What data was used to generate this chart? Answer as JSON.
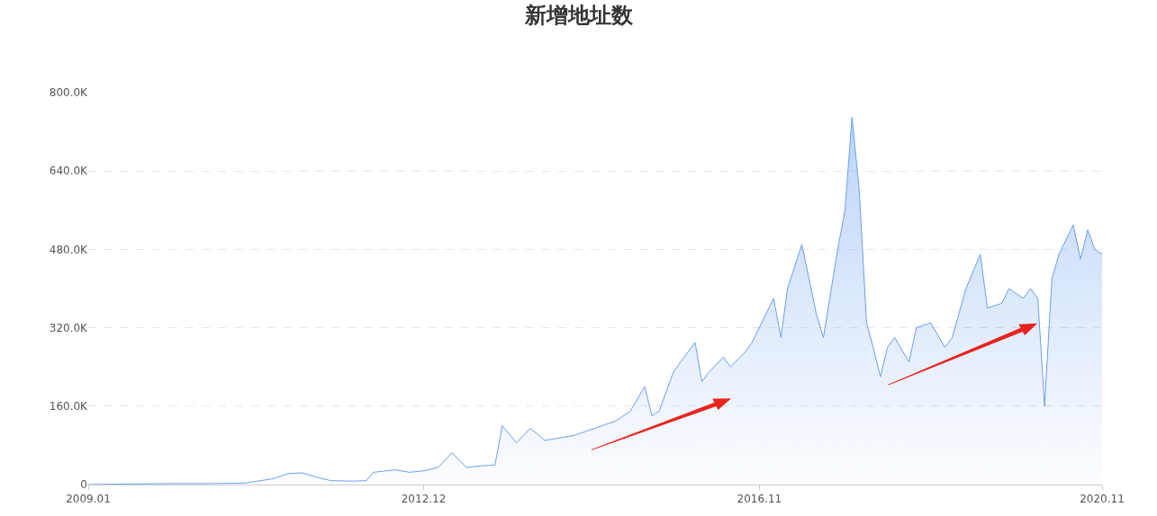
{
  "chart_data": {
    "type": "area",
    "title": "新增地址数",
    "x": [
      "2009-01",
      "2009-06",
      "2010-01",
      "2010-06",
      "2010-11",
      "2011-03",
      "2011-05",
      "2011-07",
      "2011-09",
      "2011-11",
      "2012-02",
      "2012-04",
      "2012-05",
      "2012-08",
      "2012-10",
      "2012-12",
      "2013-02",
      "2013-04",
      "2013-06",
      "2013-08",
      "2013-10",
      "2013-11",
      "2014-01",
      "2014-03",
      "2014-05",
      "2014-07",
      "2014-09",
      "2014-11",
      "2015-01",
      "2015-03",
      "2015-05",
      "2015-07",
      "2015-08",
      "2015-09",
      "2015-11",
      "2015-12",
      "2016-02",
      "2016-03",
      "2016-04",
      "2016-06",
      "2016-07",
      "2016-09",
      "2016-10",
      "2016-12",
      "2017-01",
      "2017-02",
      "2017-03",
      "2017-05",
      "2017-06",
      "2017-07",
      "2017-08",
      "2017-10",
      "2017-11",
      "2017-12",
      "2018-01",
      "2018-02",
      "2018-03",
      "2018-04",
      "2018-05",
      "2018-06",
      "2018-08",
      "2018-09",
      "2018-11",
      "2019-01",
      "2019-02",
      "2019-04",
      "2019-06",
      "2019-07",
      "2019-09",
      "2019-10",
      "2019-12",
      "2020-01",
      "2020-02",
      "2020-03",
      "2020-04",
      "2020-05",
      "2020-07",
      "2020-08",
      "2020-09",
      "2020-10",
      "2020-11"
    ],
    "series": [
      {
        "color": "#6b9ff0",
        "values": [
          0,
          1000,
          2000,
          2000,
          3000,
          12000,
          22000,
          24000,
          15000,
          8000,
          7000,
          8000,
          25000,
          30000,
          25000,
          28000,
          35000,
          65000,
          35000,
          38000,
          40000,
          120000,
          85000,
          115000,
          90000,
          95000,
          100000,
          110000,
          120000,
          130000,
          150000,
          200000,
          140000,
          150000,
          230000,
          250000,
          290000,
          210000,
          230000,
          260000,
          240000,
          270000,
          290000,
          350000,
          380000,
          300000,
          400000,
          490000,
          420000,
          350000,
          300000,
          480000,
          560000,
          750000,
          600000,
          330000,
          280000,
          220000,
          280000,
          300000,
          250000,
          320000,
          330000,
          280000,
          300000,
          400000,
          470000,
          360000,
          370000,
          400000,
          380000,
          400000,
          380000,
          160000,
          420000,
          470000,
          530000,
          460000,
          520000,
          480000,
          470000
        ]
      }
    ],
    "xlim": [
      "2009-01",
      "2020-11"
    ],
    "xticks": [
      {
        "value": "2009-01",
        "label": "2009.01"
      },
      {
        "value": "2012-12",
        "label": "2012.12"
      },
      {
        "value": "2016-11",
        "label": "2016.11"
      },
      {
        "value": "2020-11",
        "label": "2020.11"
      }
    ],
    "ylim": [
      0,
      800000
    ],
    "yticks": [
      0,
      {
        "value": 160000,
        "label": "160.0K"
      },
      {
        "value": 320000,
        "label": "320.0K"
      },
      {
        "value": 480000,
        "label": "480.0K"
      },
      {
        "value": 640000,
        "label": "640.0K"
      },
      {
        "value": 800000,
        "label": "800.0K"
      }
    ],
    "grid": "y"
  }
}
